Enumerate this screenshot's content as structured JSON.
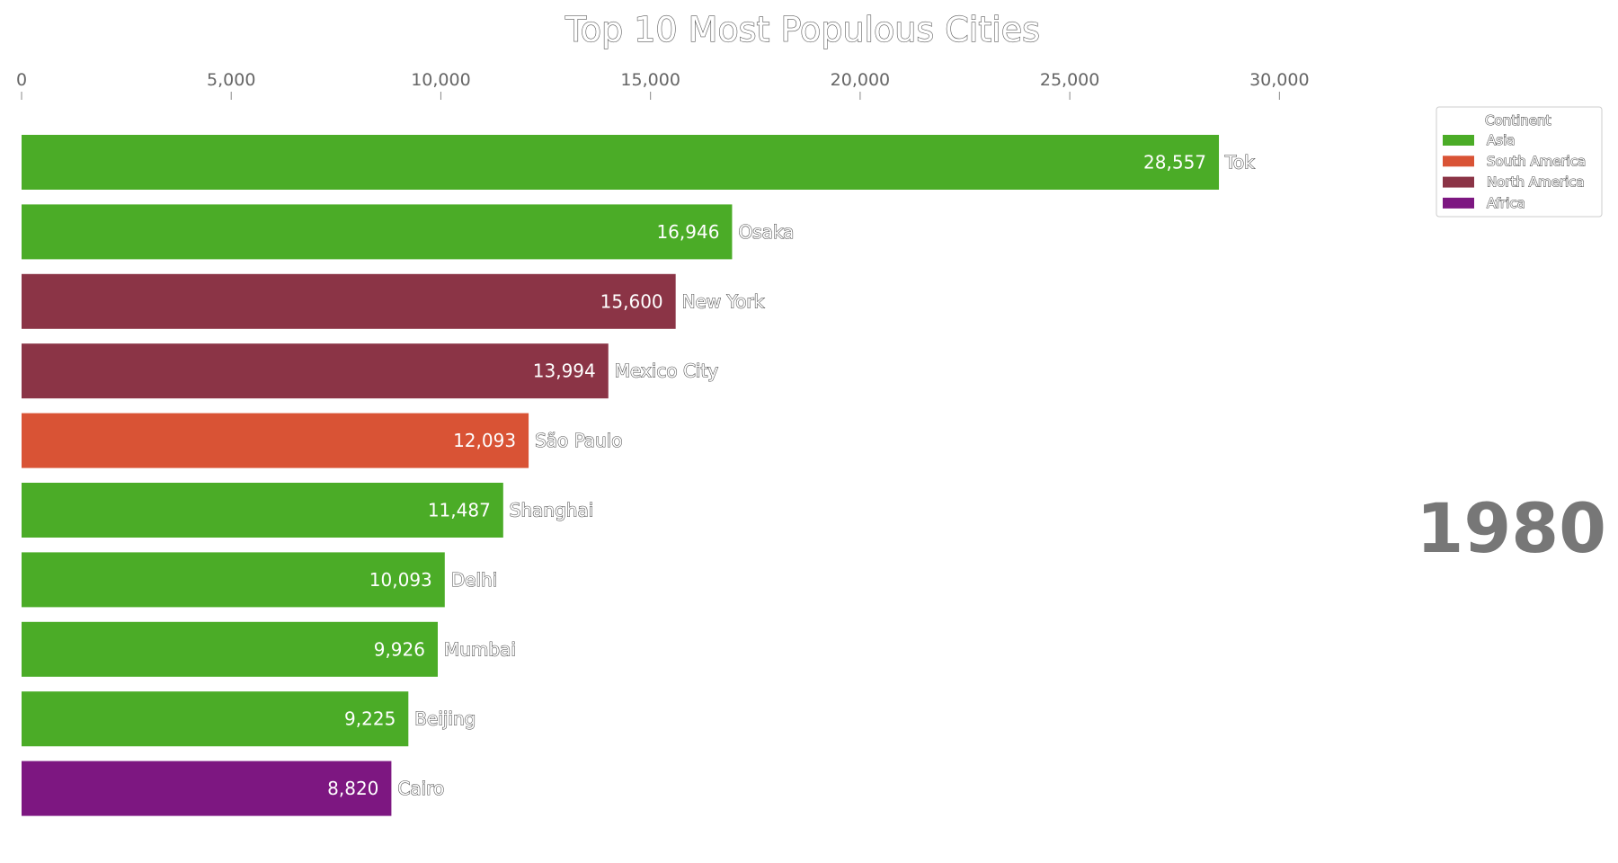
{
  "chart_data": {
    "type": "bar",
    "orientation": "horizontal",
    "title": "Top 10 Most Populous Cities",
    "year": "1980",
    "xlim": [
      0,
      32500
    ],
    "xticks": [
      0,
      5000,
      10000,
      15000,
      20000,
      25000,
      30000
    ],
    "xtick_labels": [
      "0",
      "5,000",
      "10,000",
      "15,000",
      "20,000",
      "25,000",
      "30,000"
    ],
    "grid": false,
    "categories": [
      "Tokyo",
      "Osaka",
      "New York",
      "Mexico City",
      "São Paulo",
      "Shanghai",
      "Delhi",
      "Mumbai",
      "Beijing",
      "Cairo"
    ],
    "category_labels_visible": [
      "Tok",
      "Osaka",
      "New York",
      "Mexico City",
      "São Paulo",
      "Shanghai",
      "Delhi",
      "Mumbai",
      "Beijing",
      "Cairo"
    ],
    "values": [
      28557,
      16946,
      15600,
      13994,
      12093,
      11487,
      10093,
      9926,
      9225,
      8820
    ],
    "value_labels": [
      "28,557",
      "16,946",
      "15,600",
      "13,994",
      "12,093",
      "11,487",
      "10,093",
      "9,926",
      "9,225",
      "8,820"
    ],
    "bar_continents": [
      "Asia",
      "Asia",
      "North America",
      "North America",
      "South America",
      "Asia",
      "Asia",
      "Asia",
      "Asia",
      "Africa"
    ],
    "legend": {
      "title": "Continent",
      "placement": "top-right",
      "entries": [
        {
          "name": "Asia",
          "color": "#4bac27"
        },
        {
          "name": "South America",
          "color": "#d95335"
        },
        {
          "name": "North America",
          "color": "#8b3446"
        },
        {
          "name": "Africa",
          "color": "#7d1781"
        }
      ]
    }
  }
}
